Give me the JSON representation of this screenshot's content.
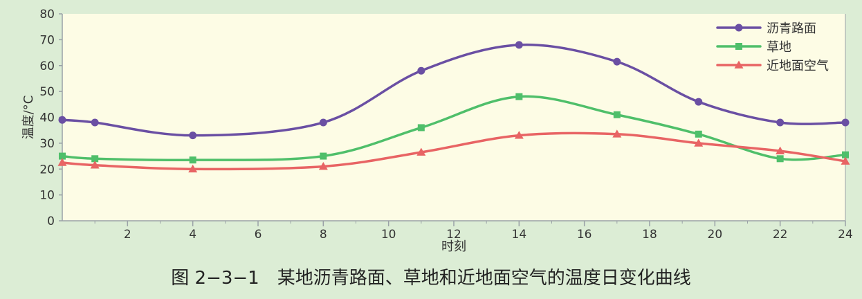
{
  "figure": {
    "caption": "图 2−3−1　某地沥青路面、草地和近地面空气的温度日变化曲线"
  },
  "colors": {
    "page_background": "#dcedd5",
    "plot_background": "#fdfce5",
    "axis": "#9aa1a6",
    "text": "#333333"
  },
  "chart_data": {
    "type": "line",
    "title": "",
    "xlabel": "时刻",
    "ylabel": "温度/°C",
    "xlim": [
      0,
      24
    ],
    "ylim": [
      0,
      80
    ],
    "xticks": [
      2,
      4,
      6,
      8,
      10,
      12,
      14,
      16,
      18,
      20,
      22,
      24
    ],
    "yticks": [
      0,
      10,
      20,
      30,
      40,
      50,
      60,
      70,
      80
    ],
    "grid": false,
    "legend_position": "top-right",
    "series": [
      {
        "name": "沥青路面",
        "color": "#6a4fa3",
        "marker": "circle",
        "x": [
          0,
          1,
          4,
          8,
          11,
          14,
          17,
          19.5,
          22,
          24
        ],
        "y": [
          39,
          38,
          33,
          38,
          58,
          68,
          61.5,
          46,
          38,
          38
        ]
      },
      {
        "name": "草地",
        "color": "#4fbf6a",
        "marker": "square",
        "x": [
          0,
          1,
          4,
          8,
          11,
          14,
          17,
          19.5,
          22,
          24
        ],
        "y": [
          25,
          24,
          23.5,
          25,
          36,
          48,
          41,
          33.5,
          24,
          25.5
        ]
      },
      {
        "name": "近地面空气",
        "color": "#e86464",
        "marker": "triangle",
        "x": [
          0,
          1,
          4,
          8,
          11,
          14,
          17,
          19.5,
          22,
          24
        ],
        "y": [
          22.5,
          21.5,
          20,
          21,
          26.5,
          33,
          33.5,
          30,
          27,
          23
        ]
      }
    ]
  }
}
